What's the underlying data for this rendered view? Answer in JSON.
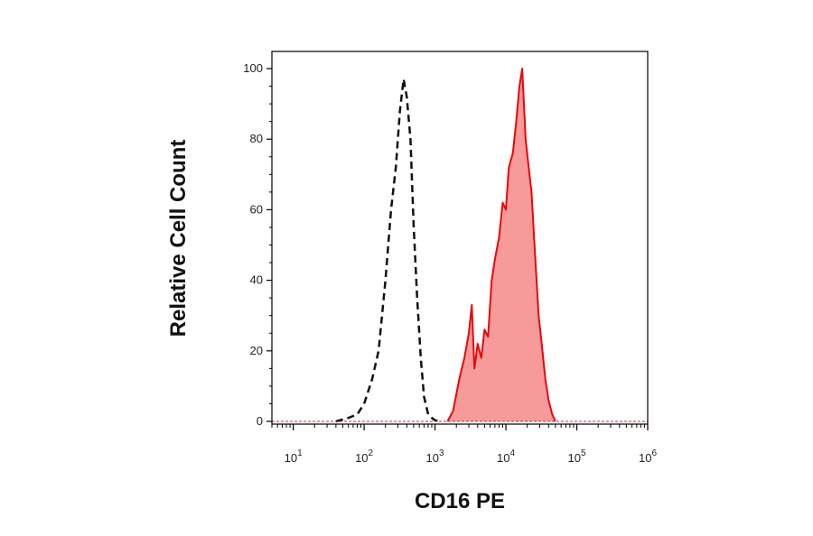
{
  "chart_data": {
    "type": "area",
    "xlabel": "CD16 PE",
    "ylabel": "Relative Cell Count",
    "x_scale": "log10",
    "xlim": [
      5,
      1000000
    ],
    "ylim": [
      0,
      100
    ],
    "y_ticks": [
      "0",
      "20",
      "40",
      "60",
      "80",
      "100"
    ],
    "x_ticks": [
      {
        "base": "10",
        "exp": "1"
      },
      {
        "base": "10",
        "exp": "2"
      },
      {
        "base": "10",
        "exp": "3"
      },
      {
        "base": "10",
        "exp": "4"
      },
      {
        "base": "10",
        "exp": "5"
      },
      {
        "base": "10",
        "exp": "6"
      }
    ],
    "series": [
      {
        "style": "dashed-line",
        "color": "#111111",
        "x": [
          40,
          60,
          80,
          100,
          130,
          160,
          200,
          240,
          280,
          320,
          360,
          400,
          450,
          500,
          560,
          630,
          700,
          800,
          900,
          1000,
          1200
        ],
        "y": [
          0,
          1,
          2,
          5,
          12,
          20,
          40,
          60,
          72,
          88,
          97,
          92,
          80,
          55,
          35,
          18,
          7,
          2,
          1,
          0.3,
          0
        ]
      },
      {
        "style": "filled",
        "color": "#e8080a",
        "fill": "#f79a9a",
        "x": [
          1500,
          1800,
          2200,
          2600,
          3000,
          3300,
          3600,
          4000,
          4500,
          5000,
          5600,
          6300,
          7000,
          8000,
          9000,
          10000,
          11000,
          12500,
          14000,
          15500,
          17000,
          19000,
          21000,
          23000,
          26000,
          29000,
          32000,
          36000,
          40000,
          45000,
          50000
        ],
        "y": [
          0,
          3,
          12,
          18,
          25,
          33,
          15,
          22,
          18,
          26,
          24,
          40,
          46,
          52,
          62,
          60,
          72,
          76,
          85,
          95,
          100,
          80,
          72,
          65,
          46,
          30,
          22,
          12,
          6,
          2,
          0
        ]
      }
    ],
    "grid": false,
    "legend": "none"
  }
}
